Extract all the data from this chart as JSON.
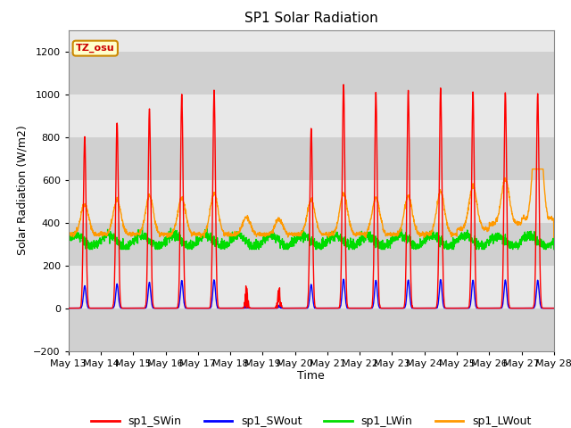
{
  "title": "SP1 Solar Radiation",
  "xlabel": "Time",
  "ylabel": "Solar Radiation (W/m2)",
  "ylim": [
    -200,
    1300
  ],
  "yticks": [
    -200,
    0,
    200,
    400,
    600,
    800,
    1000,
    1200
  ],
  "background_color": "#ffffff",
  "plot_bg_color": "#e8e8e8",
  "grid_color": "#ffffff",
  "annotation_text": "TZ_osu",
  "annotation_bg": "#ffffcc",
  "annotation_border": "#cc8800",
  "legend_entries": [
    "sp1_SWin",
    "sp1_SWout",
    "sp1_LWin",
    "sp1_LWout"
  ],
  "colors": {
    "sp1_SWin": "#ff0000",
    "sp1_SWout": "#0000ff",
    "sp1_LWin": "#00dd00",
    "sp1_LWout": "#ff9900"
  },
  "line_width": 1.0,
  "n_days": 15,
  "start_day": 13
}
